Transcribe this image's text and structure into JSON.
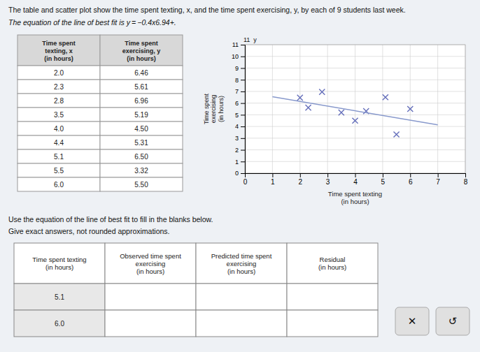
{
  "chart_data": {
    "type": "scatter",
    "title": "The table and scatter plot show the time spent texting, x, and the time spent exercising, y, by each of 9 students last week.",
    "subtitle": "The equation of the line of best fit is y = −0.4x‫+‬6.94.",
    "x_label": "Time spent texting\n(in hours)",
    "y_label": "Time spent\nexercising\n(in hours)",
    "series": [
      {
        "type": "scatter",
        "x": [
          2.0,
          2.3,
          2.8,
          3.5,
          4.0,
          4.4,
          5.1,
          5.5,
          6.0
        ],
        "values": [
          6.46,
          5.61,
          6.96,
          5.19,
          4.5,
          5.31,
          6.5,
          3.32,
          5.5
        ],
        "color": "#6670bb",
        "marker": "x"
      },
      {
        "type": "line",
        "x": [
          1,
          7
        ],
        "values": [
          6.54,
          4.14
        ],
        "color": "#8899cc"
      }
    ],
    "xlim": [
      0,
      8
    ],
    "ylim": [
      0,
      11
    ],
    "xticks": [
      0,
      1,
      2,
      3,
      4,
      5,
      6,
      7,
      8
    ],
    "yticks": [
      0,
      1,
      2,
      3,
      4,
      5,
      6,
      7,
      8,
      9,
      10,
      11
    ],
    "grid": true,
    "annotations": [
      {
        "text": "11  y",
        "x": 0,
        "y": 11
      }
    ]
  },
  "instructions": [
    "Use the equation of the line of best fit to fill in the blanks below.",
    "Give exact answers, not rounded approximations."
  ],
  "tables": [
    {
      "columns": [
        "Time spent\ntexting, x\n(in hours)",
        "Time spent\nexercising, y\n(in hours)"
      ],
      "rows": [
        [
          "2.0",
          "6.46"
        ],
        [
          "2.3",
          "5.61"
        ],
        [
          "2.8",
          "6.96"
        ],
        [
          "3.5",
          "5.19"
        ],
        [
          "4.0",
          "4.50"
        ],
        [
          "4.4",
          "5.31"
        ],
        [
          "5.1",
          "6.50"
        ],
        [
          "5.5",
          "3.32"
        ],
        [
          "6.0",
          "5.50"
        ]
      ]
    },
    {
      "columns": [
        "Time spent texting\n(in hours)",
        "Observed time spent\nexercising\n(in hours)",
        "Predicted time spent\nexercising\n(in hours)",
        "Residual\n(in hours)"
      ],
      "rows": [
        [
          "5.1"
        ],
        [
          "6.0"
        ]
      ]
    }
  ],
  "buttons": [
    "✕",
    "↺"
  ]
}
